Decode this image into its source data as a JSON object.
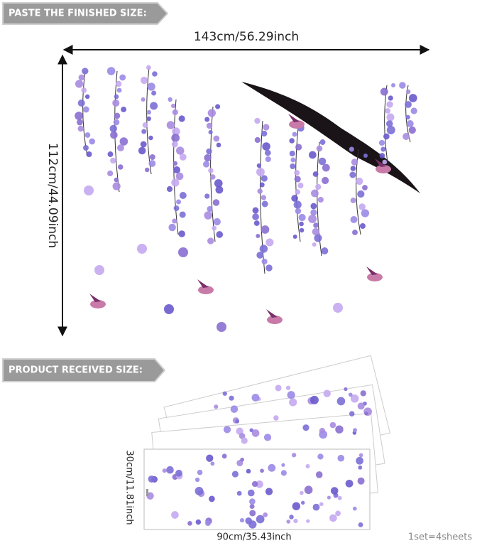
{
  "header": {
    "finished_label": "PASTE THE FINISHED SIZE:",
    "width": "143cm/56.29inch",
    "height": "112cm/44.09inch"
  },
  "received": {
    "label": "PRODUCT RECEIVED SIZE:",
    "height": "30cm/11.81inch",
    "width": "90cm/35.43inch",
    "set": "1set=4sheets"
  }
}
